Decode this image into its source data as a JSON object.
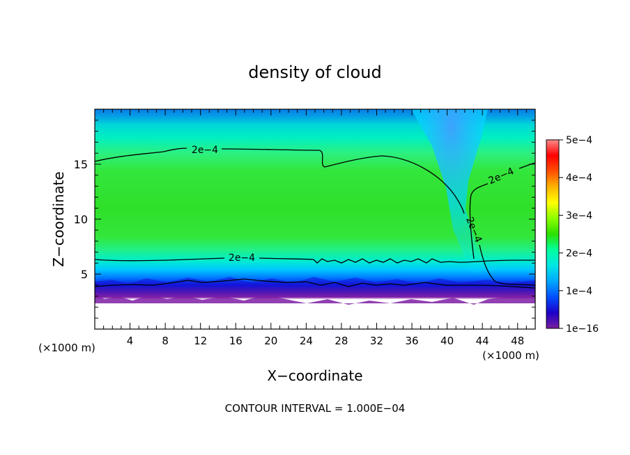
{
  "chart_data": {
    "type": "heatmap",
    "title": "density of cloud",
    "xlabel": "X−coordinate",
    "ylabel": "Z−coordinate",
    "x_unit_left": "(×1000 m)",
    "x_unit_right": "(×1000 m)",
    "xlim": [
      0,
      50
    ],
    "ylim": [
      0,
      20
    ],
    "x_ticks": [
      4,
      8,
      12,
      16,
      20,
      24,
      28,
      32,
      36,
      40,
      44,
      48
    ],
    "y_ticks": [
      5,
      10,
      15
    ],
    "colorbar": {
      "ticks": [
        "5e−4",
        "4e−4",
        "3e−4",
        "2e−4",
        "1e−4",
        "1e−16"
      ],
      "min": 0,
      "max": 0.0005,
      "colors": [
        "#7a1fa0",
        "#1c00c8",
        "#0050ff",
        "#00a8ff",
        "#00e6e6",
        "#00ff9c",
        "#2ce000",
        "#8cff00",
        "#ffff00",
        "#ffb400",
        "#ff5000",
        "#ff0000",
        "#ff8a8a"
      ]
    },
    "contour_labels": [
      "2e−4",
      "2e−4",
      "2e−4",
      "2e−4"
    ],
    "contour_level": 0.0002,
    "footer": "CONTOUR INTERVAL = 1.000E−04"
  }
}
